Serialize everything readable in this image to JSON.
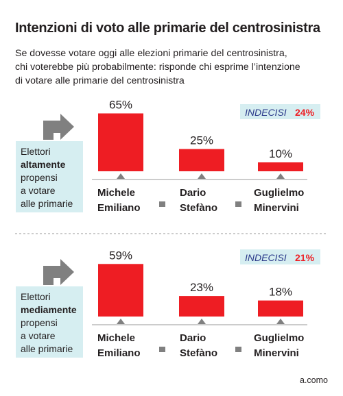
{
  "title": "Intenzioni di voto alle primarie del centrosinistra",
  "subtitle_lines": [
    "Se dovesse votare oggi alle elezioni primarie del centrosinistra,",
    "chi voterebbe più probabilmente: risponde chi esprime l’intenzione",
    "di votare alle primarie del centrosinistra"
  ],
  "colors": {
    "bar": "#ee1d23",
    "label_box": "#d6eef1",
    "undecided_box": "#d6eef1",
    "arrow": "#808080",
    "accent": "#ee1d23"
  },
  "chart_data": [
    {
      "type": "bar",
      "group_label_lines": [
        "Elettori",
        "altamente",
        "propensi",
        "a votare",
        "alle primarie"
      ],
      "group_label_bold_line": 1,
      "categories": [
        "Michele Emiliano",
        "Dario Stefàno",
        "Guglielmo Minervini"
      ],
      "category_lines": [
        [
          "Michele",
          "Emiliano"
        ],
        [
          "Dario",
          "Stefàno"
        ],
        [
          "Guglielmo",
          "Minervini"
        ]
      ],
      "values": [
        65,
        25,
        10
      ],
      "value_labels": [
        "65%",
        "25%",
        "10%"
      ],
      "unit": "%",
      "undecided_label": "INDECISI",
      "undecided_value": "24%"
    },
    {
      "type": "bar",
      "group_label_lines": [
        "Elettori",
        "mediamente",
        "propensi",
        "a votare",
        "alle primarie"
      ],
      "group_label_bold_line": 1,
      "categories": [
        "Michele Emiliano",
        "Dario Stefàno",
        "Guglielmo Minervini"
      ],
      "category_lines": [
        [
          "Michele",
          "Emiliano"
        ],
        [
          "Dario",
          "Stefàno"
        ],
        [
          "Guglielmo",
          "Minervini"
        ]
      ],
      "values": [
        59,
        23,
        18
      ],
      "value_labels": [
        "59%",
        "23%",
        "18%"
      ],
      "unit": "%",
      "undecided_label": "INDECISI",
      "undecided_value": "21%"
    }
  ],
  "credit": "a.como"
}
